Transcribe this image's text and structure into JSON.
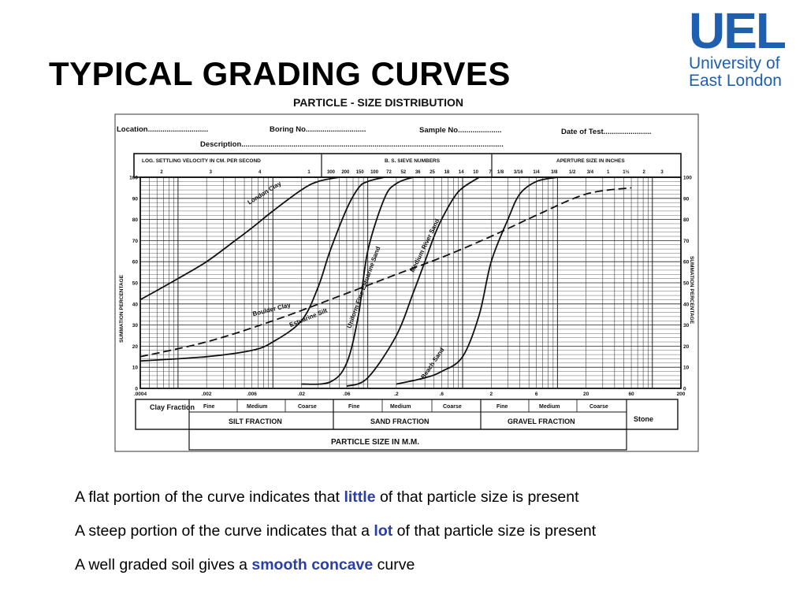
{
  "slide": {
    "title": "TYPICAL GRADING CURVES",
    "logo": {
      "line1": "UEL",
      "line2": "University of",
      "line3": "East London",
      "color": "#1f5fb0"
    },
    "notes": [
      {
        "pre": "A flat portion of the curve indicates that ",
        "em": "little",
        "post": " of that particle size is present"
      },
      {
        "pre": "A steep portion of the curve indicates that a ",
        "em": "lot",
        "post": " of that particle size is present"
      },
      {
        "pre": "A well graded soil gives a ",
        "em": "smooth concave",
        "post": " curve"
      }
    ],
    "accent": "#2a3ea8"
  },
  "form": {
    "heading": "PARTICLE - SIZE  DISTRIBUTION",
    "location": "Location",
    "boring": "Boring No",
    "sample": "Sample No",
    "date": "Date of Test",
    "description": "Description",
    "top_left_header": "LOG. SETTLING VELOCITY IN CM. PER SECOND",
    "top_mid_header": "B. S. SIEVE NUMBERS",
    "top_right_header": "APERTURE SIZE IN INCHES",
    "settling_ticks": [
      "2",
      "3",
      "4",
      "1"
    ],
    "sieve_numbers": [
      "300",
      "200",
      "150",
      "100",
      "72",
      "52",
      "36",
      "25",
      "18",
      "14",
      "10",
      "7"
    ],
    "aperture_sizes": [
      "1/8",
      "3/16",
      "1/4",
      "3/8",
      "1/2",
      "3/4",
      "1",
      "1½",
      "2",
      "3"
    ],
    "fractions": {
      "clay": "Clay Fraction",
      "silt": "SILT  FRACTION",
      "sand": "SAND  FRACTION",
      "gravel": "GRAVEL  FRACTION",
      "stone": "Stone",
      "fine": "Fine",
      "medium": "Medium",
      "coarse": "Coarse"
    }
  },
  "chart_data": {
    "type": "line",
    "title": "PARTICLE - SIZE  DISTRIBUTION",
    "xlabel": "PARTICLE  SIZE  IN  M.M.",
    "ylabel": "SUMMATION  PERCENTAGE",
    "ylabel_right": "SUMMATION  PERCENTAGE",
    "x_scale": "log",
    "xlim": [
      0.0004,
      200
    ],
    "ylim": [
      0,
      100
    ],
    "x_ticks": [
      ".0004",
      ".002",
      ".006",
      ".02",
      ".06",
      ".2",
      ".6",
      "2",
      "6",
      "20",
      "60",
      "200"
    ],
    "x_tick_values": [
      0.0004,
      0.002,
      0.006,
      0.02,
      0.06,
      0.2,
      0.6,
      2,
      6,
      20,
      60,
      200
    ],
    "y_ticks": [
      "0",
      "10",
      "20",
      "30",
      "40",
      "50",
      "60",
      "70",
      "80",
      "90",
      "100"
    ],
    "grid": true,
    "series": [
      {
        "name": "London Clay",
        "style": "solid",
        "x": [
          0.0004,
          0.001,
          0.002,
          0.004,
          0.006,
          0.01,
          0.02,
          0.03,
          0.05
        ],
        "y": [
          42,
          52,
          60,
          70,
          76,
          84,
          94,
          98,
          100
        ]
      },
      {
        "name": "Boulder Clay",
        "style": "dashed",
        "x": [
          0.0004,
          0.002,
          0.01,
          0.06,
          0.2,
          0.6,
          2,
          6,
          20,
          60
        ],
        "y": [
          15,
          22,
          32,
          45,
          54,
          62,
          72,
          82,
          92,
          95
        ]
      },
      {
        "name": "Estuarine Silt",
        "style": "solid",
        "x": [
          0.0004,
          0.002,
          0.006,
          0.01,
          0.02,
          0.03,
          0.04,
          0.06,
          0.08,
          0.1,
          0.15
        ],
        "y": [
          13,
          15,
          18,
          22,
          32,
          48,
          65,
          85,
          95,
          98,
          100
        ]
      },
      {
        "name": "Uniform Fine Estuarine Sand",
        "style": "solid",
        "x": [
          0.02,
          0.04,
          0.06,
          0.08,
          0.1,
          0.15,
          0.2,
          0.3
        ],
        "y": [
          2,
          3,
          12,
          35,
          65,
          90,
          97,
          100
        ]
      },
      {
        "name": "Medium River Sand",
        "style": "solid",
        "x": [
          0.06,
          0.1,
          0.2,
          0.3,
          0.4,
          0.5,
          0.6,
          0.8,
          1.0,
          1.5
        ],
        "y": [
          1,
          5,
          25,
          45,
          60,
          72,
          80,
          90,
          95,
          100
        ]
      },
      {
        "name": "Beach Sand",
        "style": "solid",
        "x": [
          0.2,
          0.4,
          0.6,
          1.0,
          1.5,
          2,
          3,
          4,
          6,
          10
        ],
        "y": [
          2,
          5,
          8,
          15,
          35,
          60,
          80,
          92,
          98,
          100
        ]
      }
    ]
  }
}
